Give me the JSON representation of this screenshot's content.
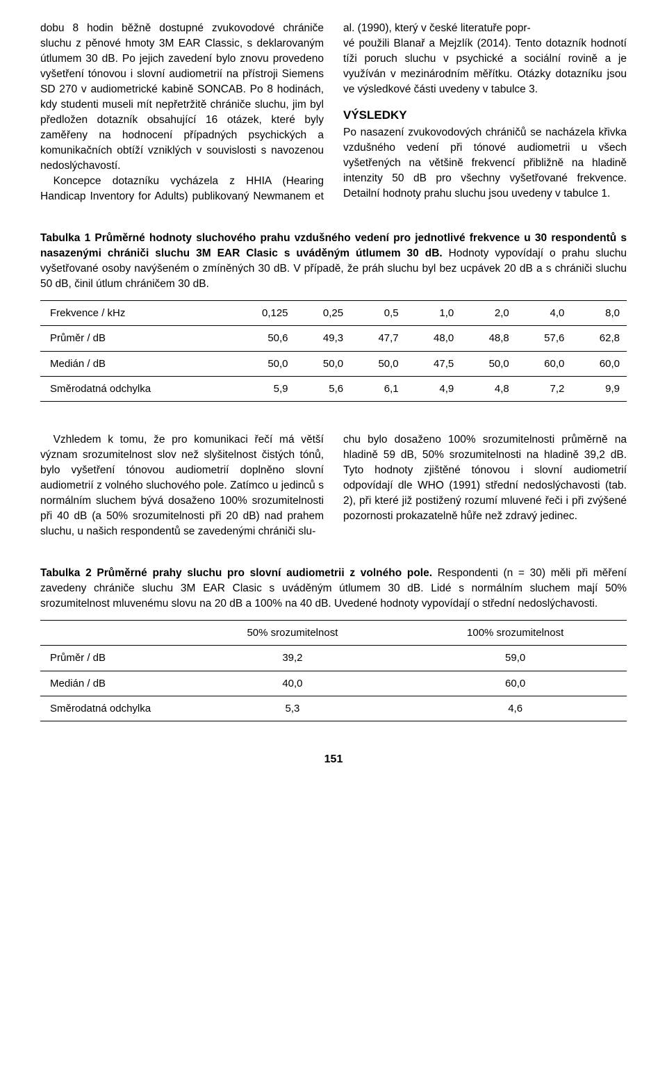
{
  "col_left": {
    "p1": "dobu 8 hodin běžně dostupné zvukovodové chrániče sluchu z pěnové hmoty 3M EAR Classic, s deklarovaným útlumem 30 dB. Po jejich zavedení bylo znovu provedeno vyšetření tónovou i slovní audiometrií na přístroji Siemens SD 270 v audiometrické kabině SONCAB. Po 8 hodinách, kdy studenti museli mít nepřetržitě chrániče sluchu, jim byl předložen dotazník obsahující 16 otázek, které byly zaměřeny na hodnocení případných psychických a komunikačních obtíží vzniklých v souvislosti s navozenou nedoslýchavostí.",
    "p2": "Koncepce dotazníku vycházela z HHIA (Hearing Handicap Inventory for Adults) publikovaný Newmanem et al. (1990), který v české literatuře popr-"
  },
  "col_right": {
    "p1": "vé použili Blanař a Mejzlík (2014). Tento dotazník hodnotí tíži poruch sluchu v psychické a sociální rovině a je využíván v mezinárodním měřítku. Otázky dotazníku jsou ve výsledkové části uvedeny v tabulce 3.",
    "heading": "VÝSLEDKY",
    "p2": "Po nasazení zvukovodových chráničů se nacházela křivka vzdušného vedení při tónové audiometrii u všech vyšetřených na většině frekvencí přibližně na hladině intenzity 50 dB pro všechny vyšetřované frekvence. Detailní hodnoty prahu sluchu jsou uvedeny v tabulce 1."
  },
  "table1": {
    "caption_bold": "Tabulka 1  Průměrné hodnoty sluchového prahu vzdušného vedení pro jednotlivé frekvence u 30 respondentů s nasazenými chrániči sluchu 3M EAR Clasic s uváděným útlumem 30 dB.",
    "caption_rest": " Hodnoty vypovídají o prahu sluchu vyšetřované osoby navýšeném o zmíněných 30 dB. V případě, že práh sluchu byl bez ucpávek 20 dB a s chrániči sluchu 50 dB, činil útlum chráničem 30 dB.",
    "headers": [
      "Frekvence / kHz",
      "0,125",
      "0,25",
      "0,5",
      "1,0",
      "2,0",
      "4,0",
      "8,0"
    ],
    "rows": [
      [
        "Průměr / dB",
        "50,6",
        "49,3",
        "47,7",
        "48,0",
        "48,8",
        "57,6",
        "62,8"
      ],
      [
        "Medián / dB",
        "50,0",
        "50,0",
        "50,0",
        "47,5",
        "50,0",
        "60,0",
        "60,0"
      ],
      [
        "Směrodatná odchylka",
        "5,9",
        "5,6",
        "6,1",
        "4,9",
        "4,8",
        "7,2",
        "9,9"
      ]
    ]
  },
  "mid_left": "Vzhledem k tomu, že pro komunikaci řečí má větší význam srozumitelnost slov než slyšitelnost čistých tónů, bylo vyšetření tónovou audiometrií doplněno slovní audiometrií z volného sluchového pole. Zatímco u jedinců s normálním sluchem bývá dosaženo 100% srozumitelnosti při 40 dB (a 50% srozumitelnosti při 20 dB) nad prahem sluchu, u našich respondentů se zavedenými chrániči slu-",
  "mid_right": "chu bylo dosaženo 100% srozumitelnosti průměrně na hladině 59 dB, 50% srozumitelnosti na hladině 39,2 dB. Tyto hodnoty zjištěné tónovou i slovní audiometrií odpovídají dle WHO (1991) střední nedoslýchavosti (tab. 2), při které již postižený rozumí mluvené řeči i při zvýšené pozornosti prokazatelně hůře než zdravý jedinec.",
  "table2": {
    "caption_bold": "Tabulka 2  Průměrné prahy sluchu pro slovní audiometrii z volného pole.",
    "caption_rest": " Respondenti (n = 30) měli při měření zavedeny chrániče sluchu 3M EAR Clasic s uváděným útlumem 30 dB. Lidé s normálním sluchem mají 50% srozumitelnost mluvenému slovu na 20 dB a 100% na 40 dB. Uvedené hodnoty vypovídají o střední nedoslýchavosti.",
    "headers": [
      "",
      "50% srozumitelnost",
      "100% srozumitelnost"
    ],
    "rows": [
      [
        "Průměr / dB",
        "39,2",
        "59,0"
      ],
      [
        "Medián / dB",
        "40,0",
        "60,0"
      ],
      [
        "Směrodatná odchylka",
        "5,3",
        "4,6"
      ]
    ]
  },
  "page_number": "151"
}
